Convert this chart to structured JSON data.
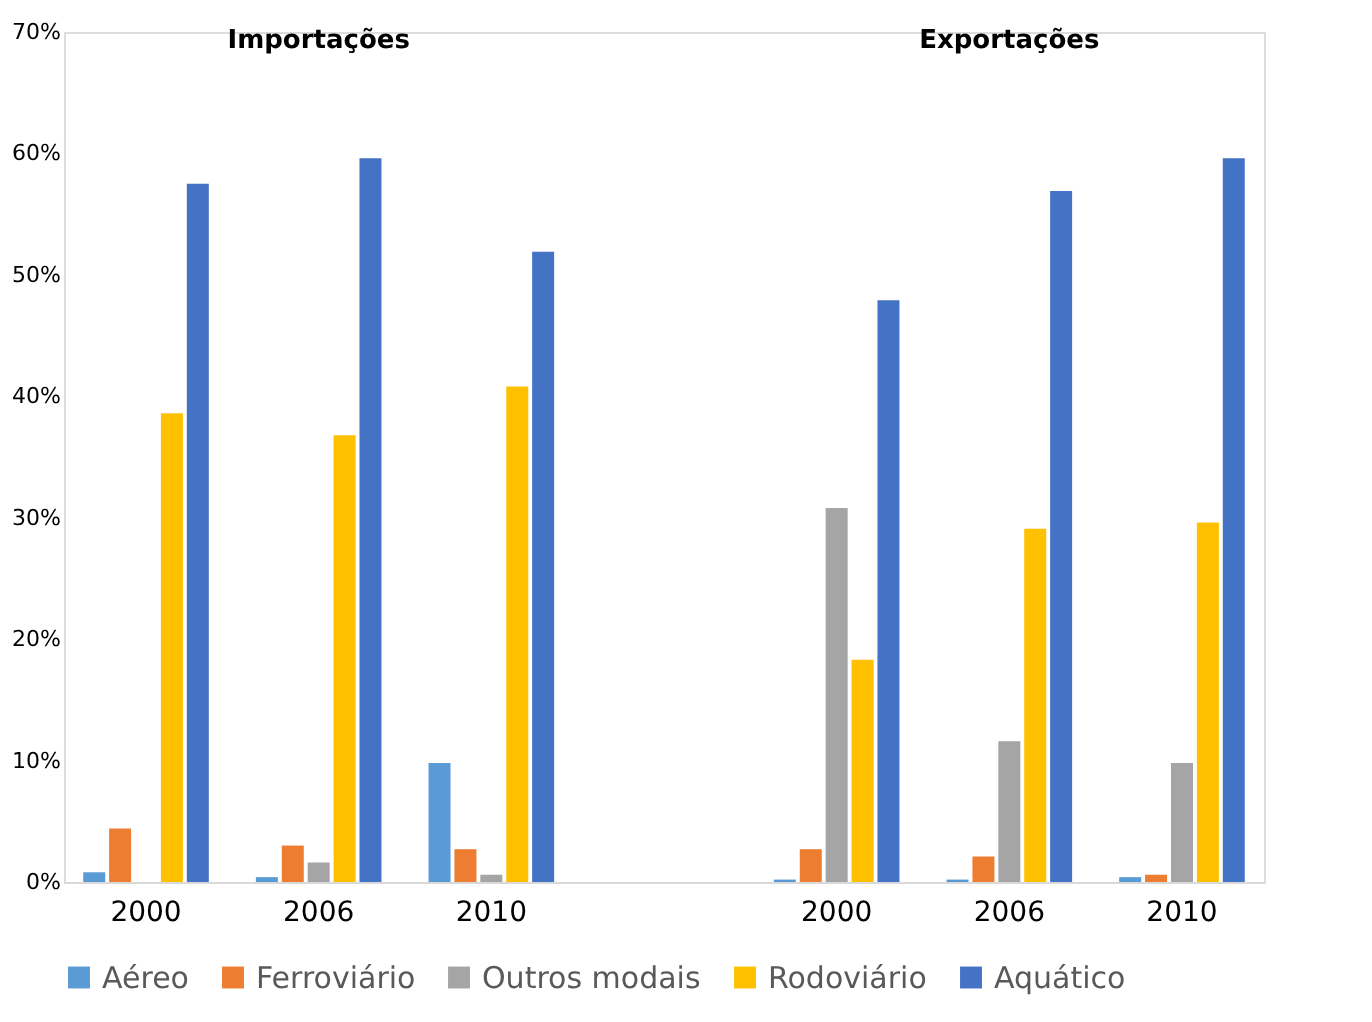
{
  "chart_data": {
    "type": "bar",
    "categories": [
      "2000",
      "2006",
      "2010",
      null,
      "2000",
      "2006",
      "2010"
    ],
    "series": [
      {
        "name": "Aéreo",
        "color": "#5b9bd5",
        "values": [
          0.8,
          0.4,
          9.8,
          null,
          0.2,
          0.2,
          0.4
        ]
      },
      {
        "name": "Ferroviário",
        "color": "#ed7d31",
        "values": [
          4.4,
          3.0,
          2.7,
          null,
          2.7,
          2.1,
          0.6
        ]
      },
      {
        "name": "Outros modais",
        "color": "#a5a5a5",
        "values": [
          0,
          1.6,
          0.6,
          null,
          30.8,
          11.6,
          9.8
        ]
      },
      {
        "name": "Rodoviário",
        "color": "#ffc000",
        "values": [
          38.6,
          36.8,
          40.8,
          null,
          18.3,
          29.1,
          29.6
        ]
      },
      {
        "name": "Aquático",
        "color": "#4472c4",
        "values": [
          57.5,
          59.6,
          51.9,
          null,
          47.9,
          56.9,
          59.6
        ]
      }
    ],
    "ylim": [
      0,
      70
    ],
    "yticks": [
      {
        "value": 0,
        "label": "0%"
      },
      {
        "value": 10,
        "label": "10%"
      },
      {
        "value": 20,
        "label": "20%"
      },
      {
        "value": 30,
        "label": "30%"
      },
      {
        "value": 40,
        "label": "40%"
      },
      {
        "value": 50,
        "label": "50%"
      },
      {
        "value": 60,
        "label": "60%"
      },
      {
        "value": 70,
        "label": "70%"
      }
    ],
    "annotations": [
      "Importações",
      "Exportações"
    ],
    "grid": false,
    "legend": "bottom"
  }
}
